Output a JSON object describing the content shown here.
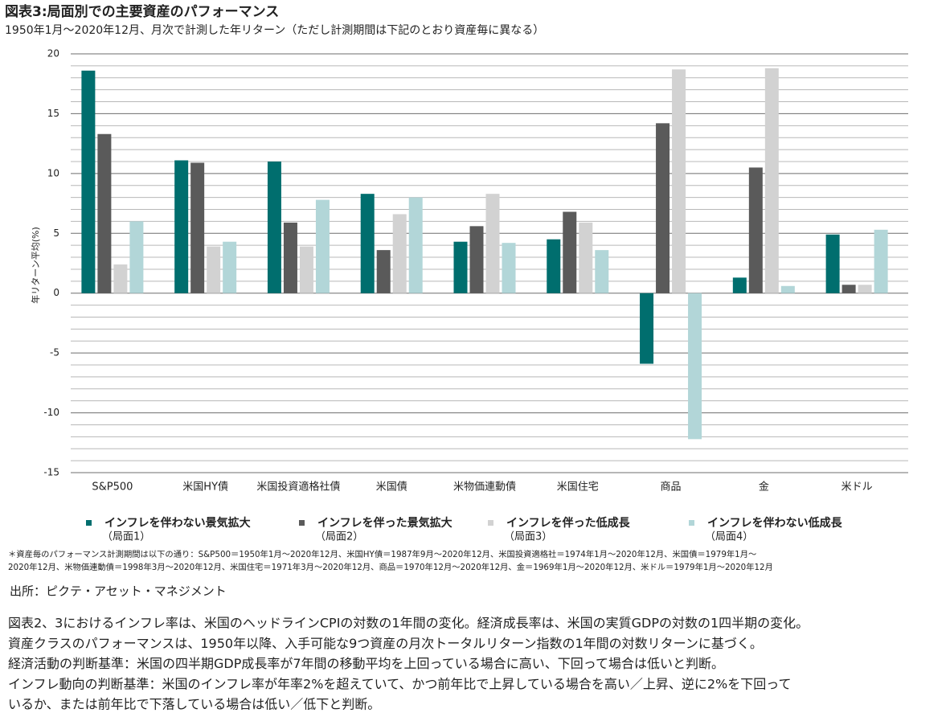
{
  "chart_data": {
    "type": "bar",
    "title": "図表3:局面別での主要資産のパフォーマンス",
    "subtitle": "1950年1月～2020年12月、月次で計測した年リターン（ただし計測期間は下記のとおり資産毎に異なる）",
    "y_label": "年リターン平均(%)",
    "categories": [
      "S&P500",
      "米国HY債",
      "米国投資適格社債",
      "米国債",
      "米物価連動債",
      "米国住宅",
      "商品",
      "金",
      "米ドル"
    ],
    "series": [
      {
        "name": "インフレを伴わない景気拡大",
        "phase": "（局面1）",
        "color": "#006e6e",
        "values": [
          18.6,
          11.1,
          11.0,
          8.3,
          4.3,
          4.5,
          -5.9,
          1.3,
          4.9
        ]
      },
      {
        "name": "インフレを伴った景気拡大",
        "phase": "（局面2）",
        "color": "#5a5a5a",
        "values": [
          13.3,
          10.9,
          5.9,
          3.6,
          5.6,
          6.8,
          14.2,
          10.5,
          0.7
        ]
      },
      {
        "name": "インフレを伴った低成長",
        "phase": "（局面3）",
        "color": "#d2d2d2",
        "values": [
          2.4,
          3.9,
          3.9,
          6.6,
          8.3,
          5.9,
          18.7,
          18.8,
          0.7
        ]
      },
      {
        "name": "インフレを伴わない低成長",
        "phase": "（局面4）",
        "color": "#b2d6d8",
        "values": [
          6.0,
          4.3,
          7.8,
          8.0,
          4.2,
          3.6,
          -12.2,
          0.6,
          5.3
        ]
      }
    ],
    "ylim": [
      -15,
      20
    ],
    "yticks": [
      -15,
      -10,
      -5,
      0,
      5,
      10,
      15,
      20
    ],
    "minor_yticks": [
      -14,
      -13,
      -12,
      -11,
      -9,
      -8,
      -7,
      -6,
      -4,
      -3,
      -2,
      -1,
      1,
      2,
      3,
      4,
      6,
      7,
      8,
      9,
      11,
      12,
      13,
      14,
      16,
      17,
      18,
      19
    ],
    "grid": true,
    "footnote": [
      "＊資産毎のパフォーマンス計測期間は以下の通り：S&P500＝1950年1月～2020年12月、米国HY債＝1987年9月～2020年12月、米国投資適格社＝1974年1月～2020年12月、米国債＝1979年1月～",
      "2020年12月、米物価連動債＝1998年3月～2020年12月、米国住宅＝1971年3月～2020年12月、商品＝1970年12月～2020年12月、金＝1969年1月～2020年12月、米ドル＝1979年1月～2020年12月"
    ],
    "source": "出所：ピクテ・アセット・マネジメント",
    "notes": [
      "図表2、3におけるインフレ率は、米国のヘッドラインCPIの対数の1年間の変化。経済成長率は、米国の実質GDPの対数の1四半期の変化。",
      "資産クラスのパフォーマンスは、1950年以降、入手可能な9つ資産の月次トータルリターン指数の1年間の対数リターンに基づく。",
      "経済活動の判断基準：米国の四半期GDP成長率が7年間の移動平均を上回っている場合に高い、下回って場合は低いと判断。",
      "インフレ動向の判断基準：米国のインフレ率が年率2%を超えていて、かつ前年比で上昇している場合を高い／上昇、逆に2%を下回って",
      "いるか、または前年比で下落している場合は低い／低下と判断。"
    ]
  }
}
